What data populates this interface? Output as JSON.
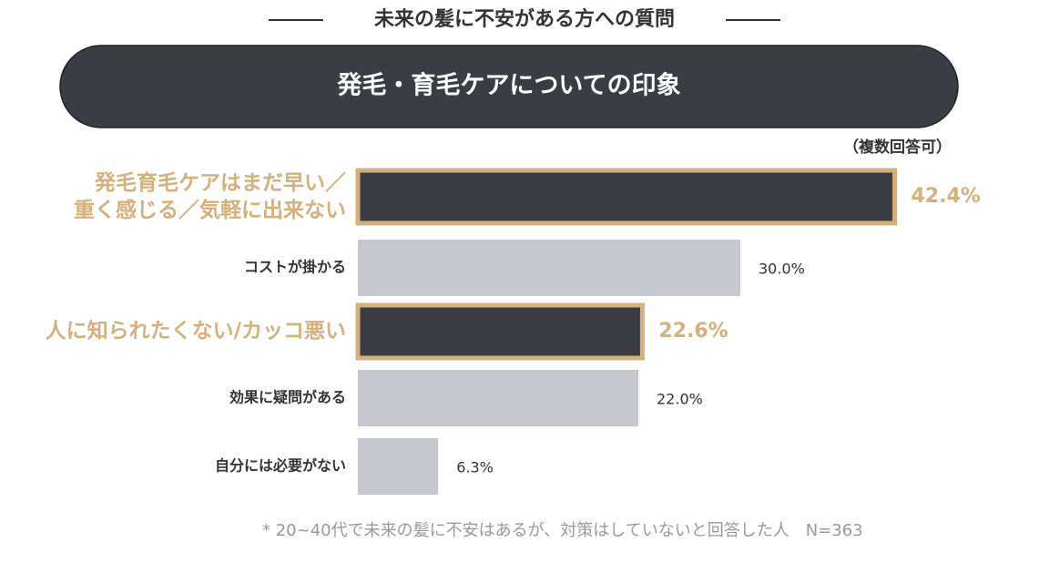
{
  "chart_data": {
    "type": "hbar",
    "title": "未来の髪に不安がある方への質問",
    "subtitle": "発毛・育毛ケアについての印象",
    "note": "（複数回答可）",
    "footnote": "* 20~40代で未来の髪に不安はあるが、対策はしていないと回答した人　N=363",
    "categories": [
      "発毛育毛ケアはまだ早い／\n重く感じる／気軽に出来ない",
      "コストが掛かる",
      "人に知られたくない/カッコ悪い",
      "効果に疑問がある",
      "自分には必要がない"
    ],
    "values": [
      42.4,
      30.0,
      22.6,
      22.0,
      6.3
    ],
    "value_labels": [
      "42.4%",
      "30.0%",
      "22.6%",
      "22.0%",
      "6.3%"
    ],
    "highlight": [
      true,
      false,
      true,
      false,
      false
    ],
    "color": "#c5c8d0",
    "highlight_color": "#3a3d44",
    "accent_color": "#d6b07a"
  }
}
